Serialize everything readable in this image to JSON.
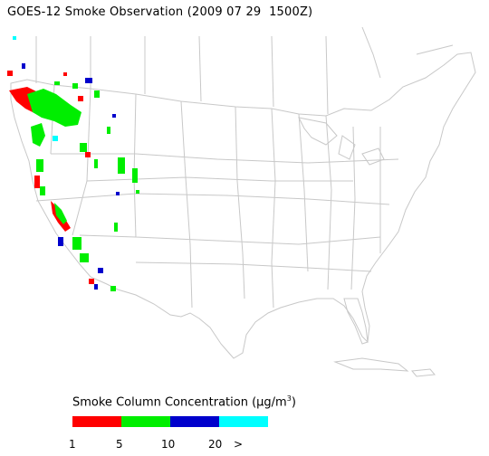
{
  "title": "GOES-12 Smoke Observation (2009 07 29  1500Z)",
  "legend": {
    "label_prefix": "Smoke Column Concentration (",
    "unit_main": "µg/m",
    "unit_sup": "3",
    "label_suffix": ")",
    "bins": [
      {
        "color": "#ff0000",
        "from": "1",
        "to": "5"
      },
      {
        "color": "#00ee00",
        "from": "5",
        "to": "10"
      },
      {
        "color": "#0000cc",
        "from": "10",
        "to": "20"
      },
      {
        "color": "#00ffff",
        "from": "20",
        "to": ">"
      }
    ],
    "ticks": [
      "1",
      "5",
      "10",
      "20",
      ">"
    ]
  },
  "colors": {
    "outline": "#c8c8c8",
    "low": "#ff0000",
    "mid": "#00ee00",
    "high": "#0000cc",
    "very_high": "#00ffff"
  }
}
